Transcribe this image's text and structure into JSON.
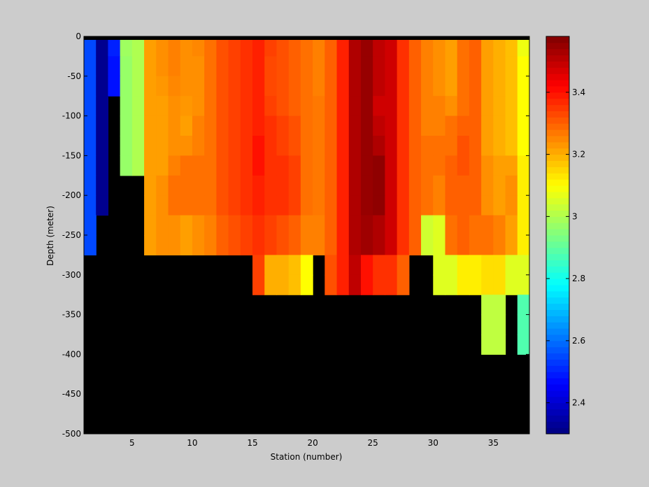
{
  "chart_data": {
    "type": "heatmap",
    "title": "",
    "xlabel": "Station (number)",
    "ylabel": "Depth (meter)",
    "xlim": [
      1,
      38
    ],
    "ylim": [
      -500,
      0
    ],
    "x_ticks": [
      5,
      10,
      15,
      20,
      25,
      30,
      35
    ],
    "y_ticks": [
      0,
      -50,
      -100,
      -150,
      -200,
      -250,
      -300,
      -350,
      -400,
      -450,
      -500
    ],
    "colorbar": {
      "colormap": "jet",
      "clim": [
        2.3,
        3.58
      ],
      "ticks": [
        2.4,
        2.6,
        2.8,
        3,
        3.2,
        3.4
      ]
    },
    "mask_color": "#000000",
    "depth_top_band_color": "#000000",
    "stations": [
      1,
      2,
      3,
      4,
      5,
      6,
      7,
      8,
      9,
      10,
      11,
      12,
      13,
      14,
      15,
      16,
      17,
      18,
      19,
      20,
      21,
      22,
      23,
      24,
      25,
      26,
      27,
      28,
      29,
      30,
      31,
      32,
      33,
      34,
      35,
      36,
      37
    ],
    "max_depth": [
      250,
      200,
      75,
      150,
      150,
      250,
      250,
      250,
      250,
      250,
      250,
      250,
      250,
      250,
      300,
      300,
      300,
      300,
      300,
      250,
      300,
      300,
      300,
      300,
      300,
      300,
      300,
      250,
      250,
      300,
      300,
      300,
      300,
      400,
      400,
      300,
      400
    ],
    "row_depths": [
      0,
      -25,
      -50,
      -75,
      -100,
      -125,
      -150,
      -175,
      -200,
      -225,
      -250,
      -275,
      -300,
      -325,
      -350,
      -375
    ],
    "values": [
      [
        2.55,
        2.32,
        2.5,
        2.98,
        3.0,
        3.22,
        3.24,
        3.26,
        3.24,
        3.25,
        3.28,
        3.32,
        3.34,
        3.36,
        3.38,
        3.34,
        3.32,
        3.3,
        3.28,
        3.26,
        3.3,
        3.38,
        3.52,
        3.55,
        3.5,
        3.48,
        3.36,
        3.3,
        3.26,
        3.24,
        3.22,
        3.28,
        3.3,
        3.22,
        3.2,
        3.18,
        3.08
      ],
      [
        2.55,
        2.32,
        2.48,
        2.97,
        3.0,
        3.22,
        3.24,
        3.26,
        3.24,
        3.24,
        3.28,
        3.32,
        3.34,
        3.36,
        3.38,
        3.33,
        3.32,
        3.3,
        3.28,
        3.26,
        3.3,
        3.38,
        3.52,
        3.55,
        3.5,
        3.48,
        3.36,
        3.3,
        3.26,
        3.24,
        3.22,
        3.28,
        3.3,
        3.22,
        3.2,
        3.18,
        3.1
      ],
      [
        2.55,
        2.32,
        2.48,
        2.97,
        3.0,
        3.22,
        3.23,
        3.25,
        3.24,
        3.24,
        3.28,
        3.32,
        3.34,
        3.36,
        3.38,
        3.33,
        3.32,
        3.3,
        3.28,
        3.26,
        3.3,
        3.38,
        3.52,
        3.55,
        3.5,
        3.48,
        3.36,
        3.3,
        3.26,
        3.24,
        3.22,
        3.28,
        3.3,
        3.22,
        3.2,
        3.18,
        3.1
      ],
      [
        2.55,
        2.32,
        null,
        2.97,
        3.0,
        3.22,
        3.22,
        3.24,
        3.23,
        3.24,
        3.28,
        3.32,
        3.34,
        3.36,
        3.38,
        3.34,
        3.32,
        3.3,
        3.28,
        3.27,
        3.3,
        3.38,
        3.52,
        3.55,
        3.48,
        3.48,
        3.36,
        3.3,
        3.26,
        3.26,
        3.24,
        3.28,
        3.3,
        3.22,
        3.2,
        3.18,
        3.1
      ],
      [
        2.55,
        2.32,
        null,
        2.97,
        3.0,
        3.22,
        3.22,
        3.24,
        3.22,
        3.26,
        3.28,
        3.32,
        3.34,
        3.36,
        3.38,
        3.36,
        3.34,
        3.32,
        3.28,
        3.27,
        3.3,
        3.38,
        3.52,
        3.55,
        3.5,
        3.48,
        3.36,
        3.3,
        3.26,
        3.26,
        3.28,
        3.3,
        3.3,
        3.22,
        3.2,
        3.18,
        3.1
      ],
      [
        2.55,
        2.32,
        null,
        2.97,
        3.0,
        3.22,
        3.22,
        3.24,
        3.24,
        3.26,
        3.28,
        3.32,
        3.34,
        3.36,
        3.4,
        3.36,
        3.34,
        3.32,
        3.28,
        3.27,
        3.3,
        3.38,
        3.52,
        3.55,
        3.52,
        3.48,
        3.36,
        3.3,
        3.28,
        3.28,
        3.28,
        3.32,
        3.3,
        3.22,
        3.2,
        3.18,
        3.1
      ],
      [
        2.55,
        2.32,
        null,
        2.97,
        3.0,
        3.22,
        3.22,
        3.26,
        3.28,
        3.28,
        3.28,
        3.32,
        3.34,
        3.36,
        3.4,
        3.36,
        3.36,
        3.34,
        3.28,
        3.27,
        3.3,
        3.38,
        3.52,
        3.55,
        3.56,
        3.48,
        3.36,
        3.3,
        3.28,
        3.28,
        3.3,
        3.32,
        3.3,
        3.24,
        3.22,
        3.22,
        3.12
      ],
      [
        2.55,
        2.32,
        null,
        null,
        null,
        3.22,
        3.24,
        3.28,
        3.28,
        3.28,
        3.28,
        3.32,
        3.34,
        3.36,
        3.38,
        3.36,
        3.36,
        3.34,
        3.28,
        3.27,
        3.3,
        3.38,
        3.52,
        3.55,
        3.56,
        3.48,
        3.36,
        3.3,
        3.28,
        3.26,
        3.3,
        3.3,
        3.3,
        3.24,
        3.22,
        3.24,
        3.12
      ],
      [
        2.55,
        2.32,
        null,
        null,
        null,
        3.22,
        3.24,
        3.28,
        3.28,
        3.28,
        3.28,
        3.32,
        3.34,
        3.36,
        3.38,
        3.36,
        3.36,
        3.34,
        3.28,
        3.27,
        3.3,
        3.38,
        3.52,
        3.55,
        3.56,
        3.48,
        3.36,
        3.3,
        3.28,
        3.26,
        3.3,
        3.3,
        3.3,
        3.24,
        3.22,
        3.24,
        3.12
      ],
      [
        2.55,
        null,
        null,
        null,
        null,
        3.22,
        3.24,
        3.24,
        3.22,
        3.24,
        3.26,
        3.3,
        3.32,
        3.34,
        3.36,
        3.34,
        3.32,
        3.3,
        3.26,
        3.26,
        3.3,
        3.38,
        3.52,
        3.54,
        3.52,
        3.48,
        3.36,
        3.3,
        3.04,
        3.06,
        3.28,
        3.3,
        3.28,
        3.28,
        3.26,
        3.22,
        3.12
      ],
      [
        2.55,
        null,
        null,
        null,
        null,
        3.22,
        3.24,
        3.24,
        3.22,
        3.24,
        3.26,
        3.3,
        3.32,
        3.34,
        3.36,
        3.34,
        3.32,
        3.3,
        3.26,
        3.26,
        3.3,
        3.38,
        3.52,
        3.54,
        3.52,
        3.48,
        3.36,
        3.3,
        3.04,
        3.06,
        3.28,
        3.3,
        3.28,
        3.28,
        3.26,
        3.22,
        3.12
      ],
      [
        null,
        null,
        null,
        null,
        null,
        null,
        null,
        null,
        null,
        null,
        null,
        null,
        null,
        null,
        3.34,
        3.2,
        3.2,
        3.18,
        3.1,
        null,
        3.32,
        3.38,
        3.5,
        3.4,
        3.36,
        3.36,
        3.3,
        null,
        null,
        3.06,
        3.06,
        3.12,
        3.12,
        3.14,
        3.14,
        3.06,
        3.06
      ],
      [
        null,
        null,
        null,
        null,
        null,
        null,
        null,
        null,
        null,
        null,
        null,
        null,
        null,
        null,
        3.34,
        3.2,
        3.2,
        3.18,
        3.1,
        null,
        3.32,
        3.38,
        3.5,
        3.4,
        3.36,
        3.36,
        3.3,
        null,
        null,
        3.06,
        3.06,
        3.12,
        3.12,
        3.14,
        3.14,
        3.06,
        3.06
      ],
      [
        null,
        null,
        null,
        null,
        null,
        null,
        null,
        null,
        null,
        null,
        null,
        null,
        null,
        null,
        null,
        null,
        null,
        null,
        null,
        null,
        null,
        null,
        null,
        null,
        null,
        null,
        null,
        null,
        null,
        null,
        null,
        null,
        null,
        3.02,
        3.02,
        null,
        2.88
      ],
      [
        null,
        null,
        null,
        null,
        null,
        null,
        null,
        null,
        null,
        null,
        null,
        null,
        null,
        null,
        null,
        null,
        null,
        null,
        null,
        null,
        null,
        null,
        null,
        null,
        null,
        null,
        null,
        null,
        null,
        null,
        null,
        null,
        null,
        3.02,
        3.02,
        null,
        2.88
      ],
      [
        null,
        null,
        null,
        null,
        null,
        null,
        null,
        null,
        null,
        null,
        null,
        null,
        null,
        null,
        null,
        null,
        null,
        null,
        null,
        null,
        null,
        null,
        null,
        null,
        null,
        null,
        null,
        null,
        null,
        null,
        null,
        null,
        null,
        3.02,
        3.02,
        null,
        2.88
      ]
    ]
  }
}
